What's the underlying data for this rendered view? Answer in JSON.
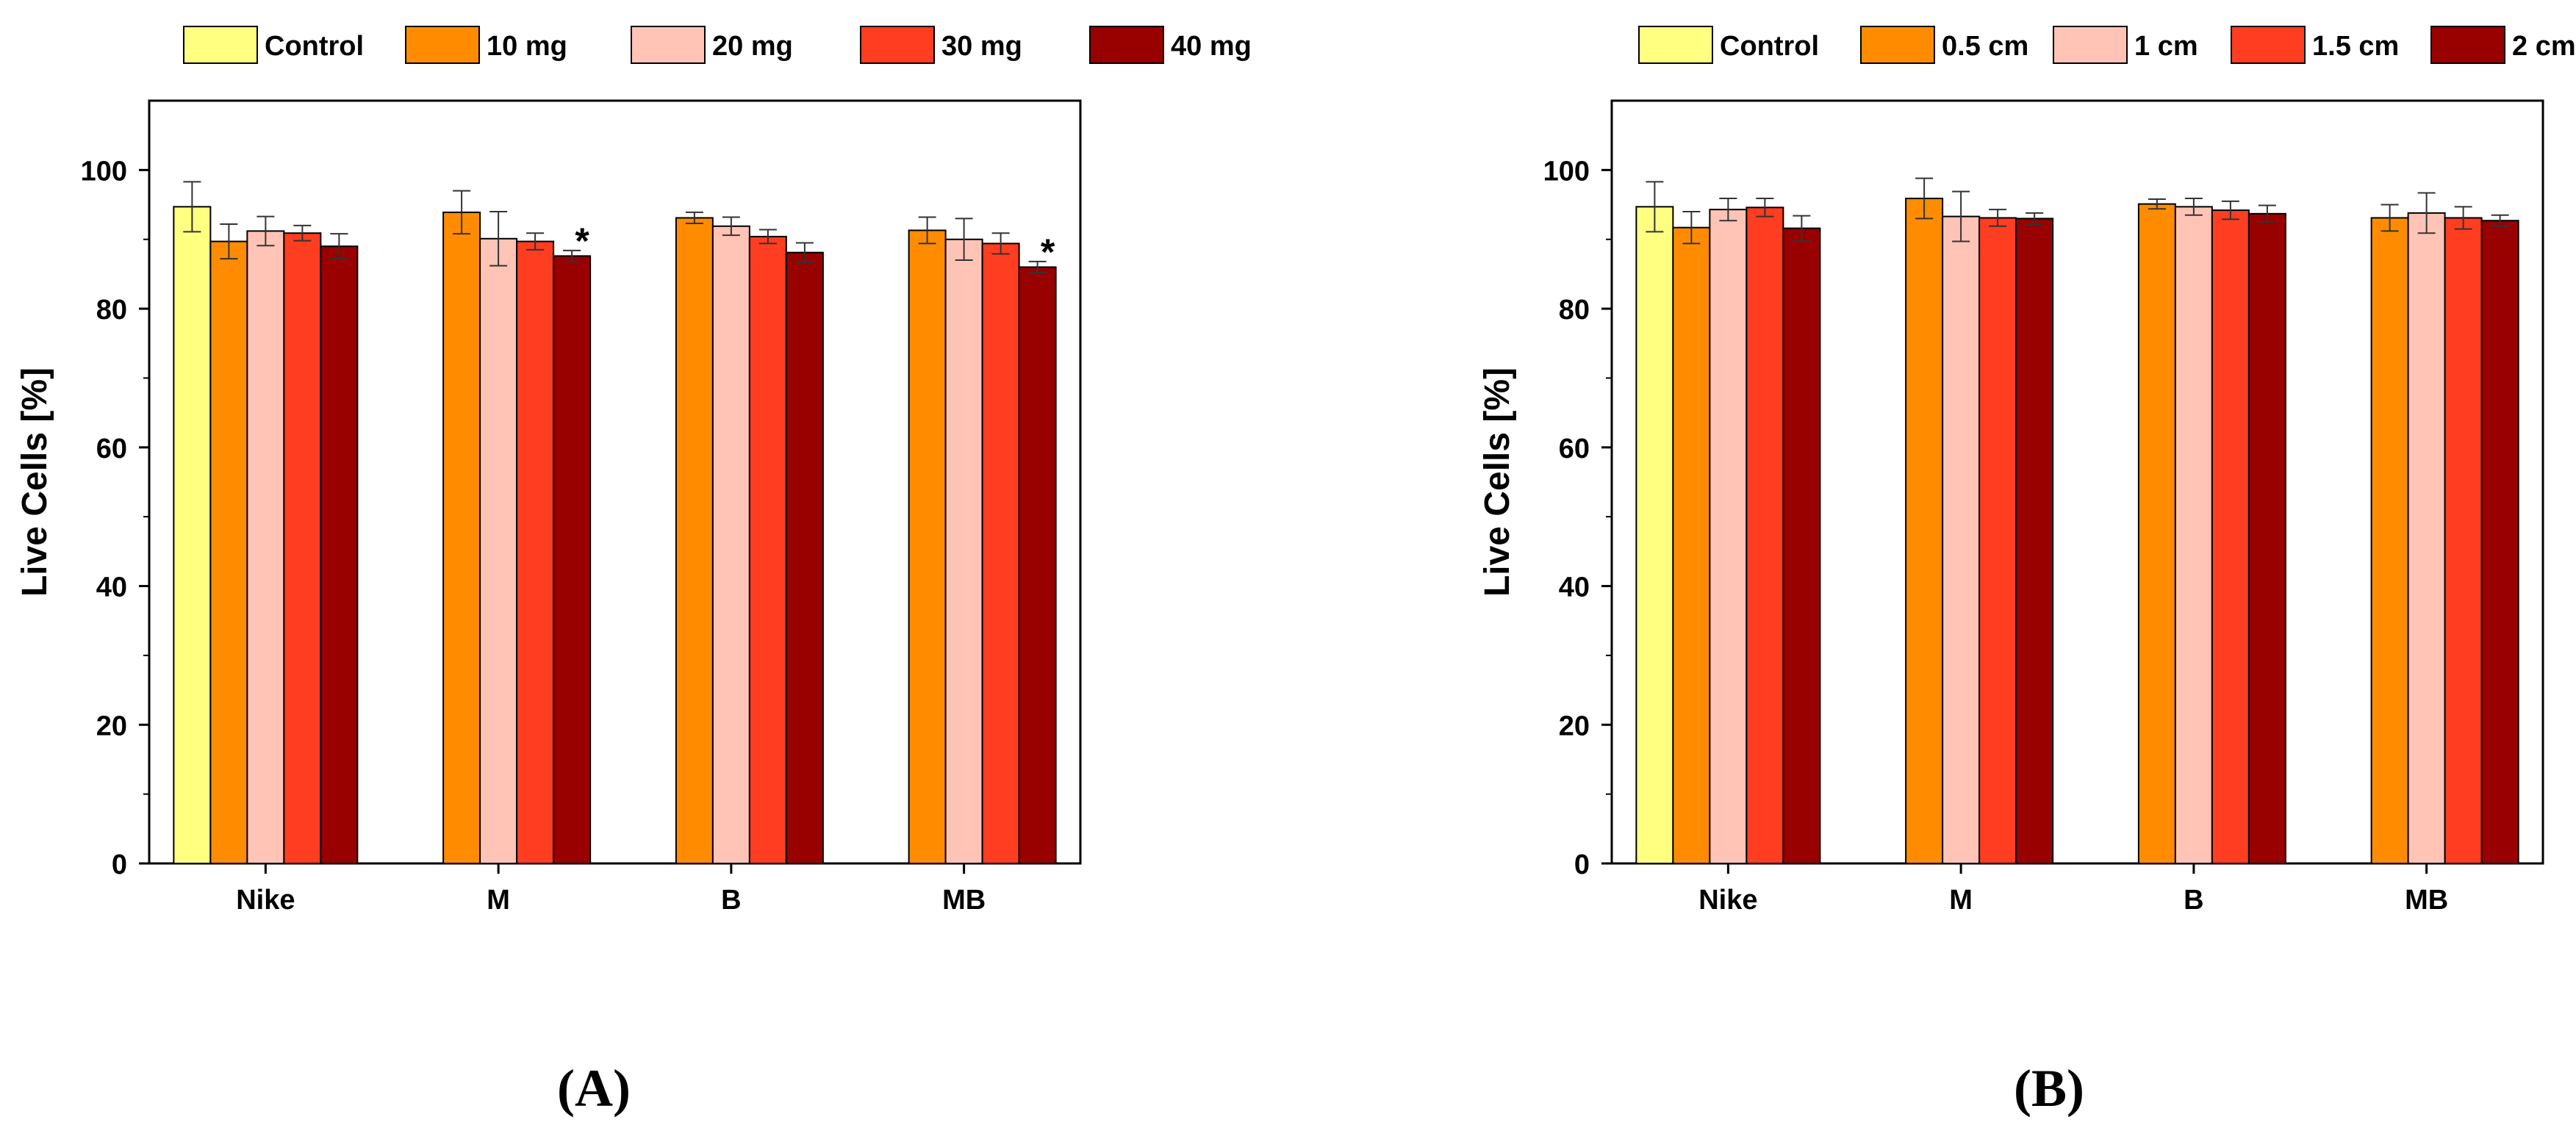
{
  "panels": [
    {
      "panel_label": "(A)",
      "legend_entries": [
        "Control",
        "10 mg",
        "20 mg",
        "30 mg",
        "40 mg"
      ],
      "chart_data": {
        "type": "bar",
        "categories": [
          "Nike",
          "M",
          "B",
          "MB"
        ],
        "ylabel": "Live Cells [%]",
        "xlabel": "",
        "ylim": [
          0,
          110
        ],
        "yticks": [
          0,
          20,
          40,
          60,
          80,
          100
        ],
        "legend_position": "top",
        "series": [
          {
            "name": "Control",
            "color": "#ffff80",
            "values": [
              94.7,
              null,
              null,
              null
            ],
            "errors": [
              3.6,
              null,
              null,
              null
            ]
          },
          {
            "name": "10 mg",
            "color": "#ff8c00",
            "values": [
              89.7,
              93.9,
              93.1,
              91.3
            ],
            "errors": [
              2.5,
              3.1,
              0.8,
              1.9
            ]
          },
          {
            "name": "20 mg",
            "color": "#ffc4b6",
            "values": [
              91.2,
              90.1,
              91.9,
              90.0
            ],
            "errors": [
              2.1,
              3.9,
              1.3,
              3.0
            ]
          },
          {
            "name": "30 mg",
            "color": "#ff3d20",
            "values": [
              90.9,
              89.7,
              90.4,
              89.4
            ],
            "errors": [
              1.1,
              1.2,
              1.0,
              1.5
            ]
          },
          {
            "name": "40 mg",
            "color": "#990000",
            "values": [
              89.0,
              87.6,
              88.1,
              86.0
            ],
            "errors": [
              1.8,
              0.8,
              1.4,
              0.8
            ]
          }
        ],
        "annotations": [
          {
            "category": "M",
            "series": "40 mg",
            "text": "*"
          },
          {
            "category": "MB",
            "series": "40 mg",
            "text": "*"
          }
        ]
      }
    },
    {
      "panel_label": "(B)",
      "legend_entries": [
        "Control",
        "0.5 cm",
        "1 cm",
        "1.5 cm",
        "2 cm"
      ],
      "chart_data": {
        "type": "bar",
        "categories": [
          "Nike",
          "M",
          "B",
          "MB"
        ],
        "ylabel": "Live Cells [%]",
        "xlabel": "",
        "ylim": [
          0,
          110
        ],
        "yticks": [
          0,
          20,
          40,
          60,
          80,
          100
        ],
        "legend_position": "top",
        "series": [
          {
            "name": "Control",
            "color": "#ffff80",
            "values": [
              94.7,
              null,
              null,
              null
            ],
            "errors": [
              3.6,
              null,
              null,
              null
            ]
          },
          {
            "name": "0.5 cm",
            "color": "#ff8c00",
            "values": [
              91.7,
              95.9,
              95.1,
              93.1
            ],
            "errors": [
              2.3,
              2.9,
              0.7,
              1.9
            ]
          },
          {
            "name": "1 cm",
            "color": "#ffc4b6",
            "values": [
              94.3,
              93.3,
              94.7,
              93.8
            ],
            "errors": [
              1.6,
              3.6,
              1.2,
              2.9
            ]
          },
          {
            "name": "1.5 cm",
            "color": "#ff3d20",
            "values": [
              94.6,
              93.1,
              94.2,
              93.1
            ],
            "errors": [
              1.3,
              1.2,
              1.3,
              1.6
            ]
          },
          {
            "name": "2 cm",
            "color": "#990000",
            "values": [
              91.6,
              93.0,
              93.7,
              92.7
            ],
            "errors": [
              1.8,
              0.8,
              1.2,
              0.8
            ]
          }
        ],
        "annotations": []
      }
    }
  ]
}
